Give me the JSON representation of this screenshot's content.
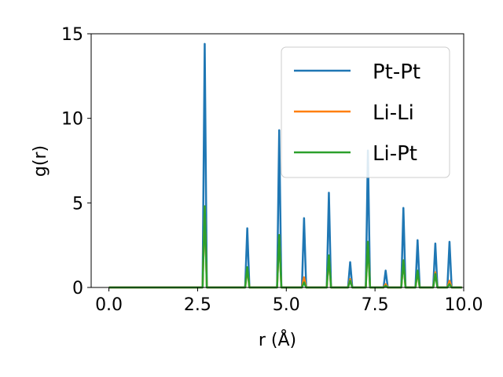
{
  "chart_data": {
    "type": "line",
    "xlabel": "r (Å)",
    "ylabel": "g(r)",
    "xlim": [
      -0.5,
      10.0
    ],
    "ylim": [
      0,
      15
    ],
    "xticks": [
      "0.0",
      "2.5",
      "5.0",
      "7.5",
      "10.0"
    ],
    "yticks": [
      "0",
      "5",
      "10",
      "15"
    ],
    "grid": false,
    "legend_position": "top-right",
    "peaks_x": [
      2.7,
      3.9,
      4.8,
      5.5,
      6.2,
      6.8,
      7.3,
      7.8,
      8.3,
      8.7,
      9.2,
      9.6
    ],
    "series": [
      {
        "name": "Pt-Pt",
        "color": "#1f77b4",
        "peaks": [
          14.4,
          3.5,
          9.3,
          4.1,
          5.6,
          1.5,
          8.1,
          1.0,
          4.7,
          2.8,
          2.6,
          2.7
        ]
      },
      {
        "name": "Li-Li",
        "color": "#ff7f0e",
        "peaks": [
          4.8,
          1.1,
          3.1,
          0.6,
          1.8,
          0.5,
          2.7,
          0.2,
          1.6,
          0.9,
          0.9,
          0.4
        ]
      },
      {
        "name": "Li-Pt",
        "color": "#2ca02c",
        "peaks": [
          4.8,
          1.2,
          3.1,
          0.3,
          1.9,
          0.4,
          2.7,
          0.1,
          1.6,
          1.0,
          0.8,
          0.2
        ]
      }
    ],
    "x_end": 9.95
  }
}
